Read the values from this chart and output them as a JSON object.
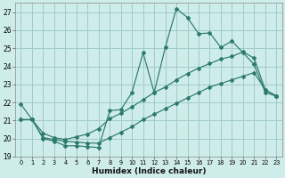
{
  "xlabel": "Humidex (Indice chaleur)",
  "bg_color": "#ceecea",
  "grid_color": "#a0ccc8",
  "line_color": "#2d7a6e",
  "xlim": [
    -0.5,
    23.5
  ],
  "ylim": [
    19,
    27.5
  ],
  "yticks": [
    19,
    20,
    21,
    22,
    23,
    24,
    25,
    26,
    27
  ],
  "xticks": [
    0,
    1,
    2,
    3,
    4,
    5,
    6,
    7,
    8,
    9,
    10,
    11,
    12,
    13,
    14,
    15,
    16,
    17,
    18,
    19,
    20,
    21,
    22,
    23
  ],
  "line1_x": [
    0,
    1,
    2,
    3,
    4,
    5,
    6,
    7,
    8,
    9,
    10,
    11,
    12,
    13,
    14,
    15,
    16,
    17,
    18,
    19,
    20,
    21,
    22,
    23
  ],
  "line1_y": [
    21.9,
    21.05,
    20.0,
    19.85,
    19.6,
    19.6,
    19.55,
    19.5,
    21.55,
    21.6,
    22.55,
    24.75,
    22.55,
    25.05,
    27.2,
    26.7,
    25.8,
    25.85,
    25.05,
    25.4,
    24.75,
    24.1,
    22.55,
    22.35
  ],
  "line2_x": [
    0,
    1,
    2,
    3,
    4,
    5,
    6,
    7,
    8,
    9,
    10,
    11,
    12,
    13,
    14,
    15,
    16,
    17,
    18,
    19,
    20,
    21,
    22,
    23
  ],
  "line2_y": [
    21.05,
    21.05,
    20.3,
    20.05,
    19.95,
    20.1,
    20.25,
    20.55,
    21.1,
    21.4,
    21.75,
    22.15,
    22.55,
    22.85,
    23.25,
    23.6,
    23.9,
    24.15,
    24.4,
    24.55,
    24.8,
    24.45,
    22.7,
    22.35
  ],
  "line3_x": [
    0,
    1,
    2,
    3,
    4,
    5,
    6,
    7,
    8,
    9,
    10,
    11,
    12,
    13,
    14,
    15,
    16,
    17,
    18,
    19,
    20,
    21,
    22,
    23
  ],
  "line3_y": [
    21.05,
    21.05,
    20.05,
    19.95,
    19.85,
    19.8,
    19.75,
    19.75,
    20.05,
    20.35,
    20.65,
    21.05,
    21.35,
    21.65,
    21.95,
    22.25,
    22.55,
    22.85,
    23.05,
    23.25,
    23.45,
    23.65,
    22.7,
    22.35
  ]
}
